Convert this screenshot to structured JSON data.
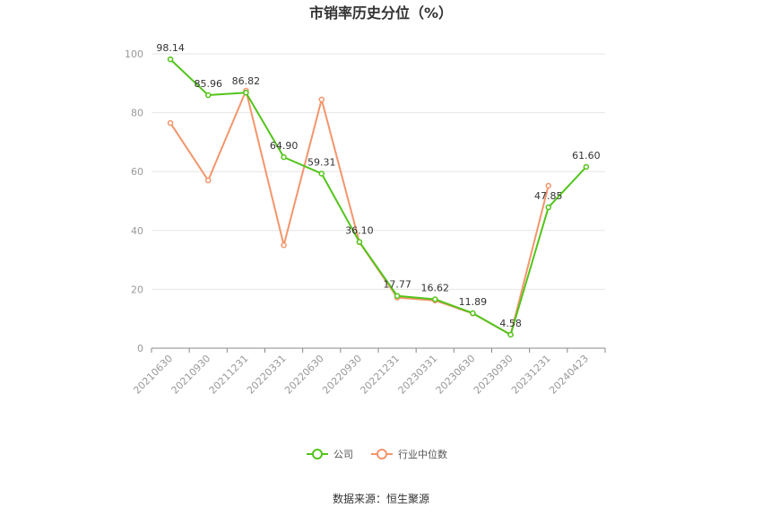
{
  "chart_data": {
    "type": "line",
    "title": "市销率历史分位（%）",
    "categories": [
      "20210630",
      "20210930",
      "20211231",
      "20220331",
      "20220630",
      "20220930",
      "20221231",
      "20230331",
      "20230630",
      "20230930",
      "20231231",
      "20240423"
    ],
    "ylim": [
      0,
      100
    ],
    "yticks": [
      0,
      20,
      40,
      60,
      80,
      100
    ],
    "grid": true,
    "legend_position": "bottom",
    "series": [
      {
        "name": "公司",
        "color": "#52c41a",
        "values": [
          98.14,
          85.96,
          86.82,
          64.9,
          59.31,
          36.1,
          17.77,
          16.62,
          11.89,
          4.58,
          47.85,
          61.6
        ],
        "labels": [
          "98.14",
          "85.96",
          "86.82",
          "64.90",
          "59.31",
          "36.10",
          "17.77",
          "16.62",
          "11.89",
          "4.58",
          "47.85",
          "61.60"
        ]
      },
      {
        "name": "行业中位数",
        "color": "#f4956b",
        "values": [
          76.5,
          57.0,
          87.5,
          35.0,
          84.5,
          36.0,
          17.2,
          16.2,
          11.8,
          4.6,
          55.2,
          null
        ]
      }
    ],
    "source": "数据来源：恒生聚源"
  }
}
